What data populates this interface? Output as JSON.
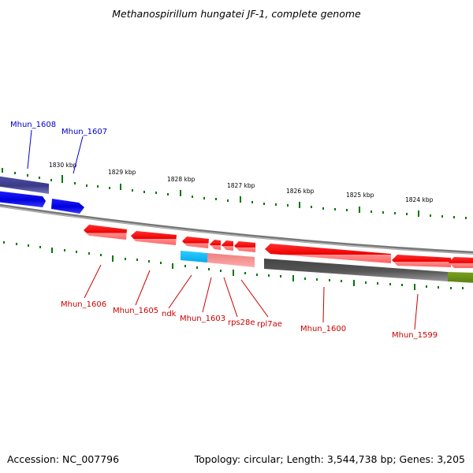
{
  "header": {
    "title": "Methanospirillum hungatei JF-1, complete genome"
  },
  "footer": {
    "accession": "Accession: NC_007796",
    "stats": "Topology: circular; Length: 3,544,738 bp; Genes: 3,205"
  },
  "colors": {
    "forward_gene": "#0000ee",
    "forward_label": "#0000cc",
    "reverse_gene": "#ee0000",
    "reverse_label": "#cc0000",
    "tick": "#007700",
    "backbone": "#888888"
  },
  "ruler": {
    "top_labels": [
      "1830 kbp",
      "1829 kbp",
      "1828 kbp",
      "1827 kbp",
      "1826 kbp",
      "1825 kbp",
      "1824 kbp"
    ]
  },
  "genes": {
    "forward": [
      "Mhun_1608",
      "Mhun_1607"
    ],
    "reverse": [
      "Mhun_1606",
      "Mhun_1605",
      "ndk",
      "Mhun_1603",
      "rps28e",
      "rpl7ae",
      "Mhun_1600",
      "Mhun_1599"
    ]
  }
}
